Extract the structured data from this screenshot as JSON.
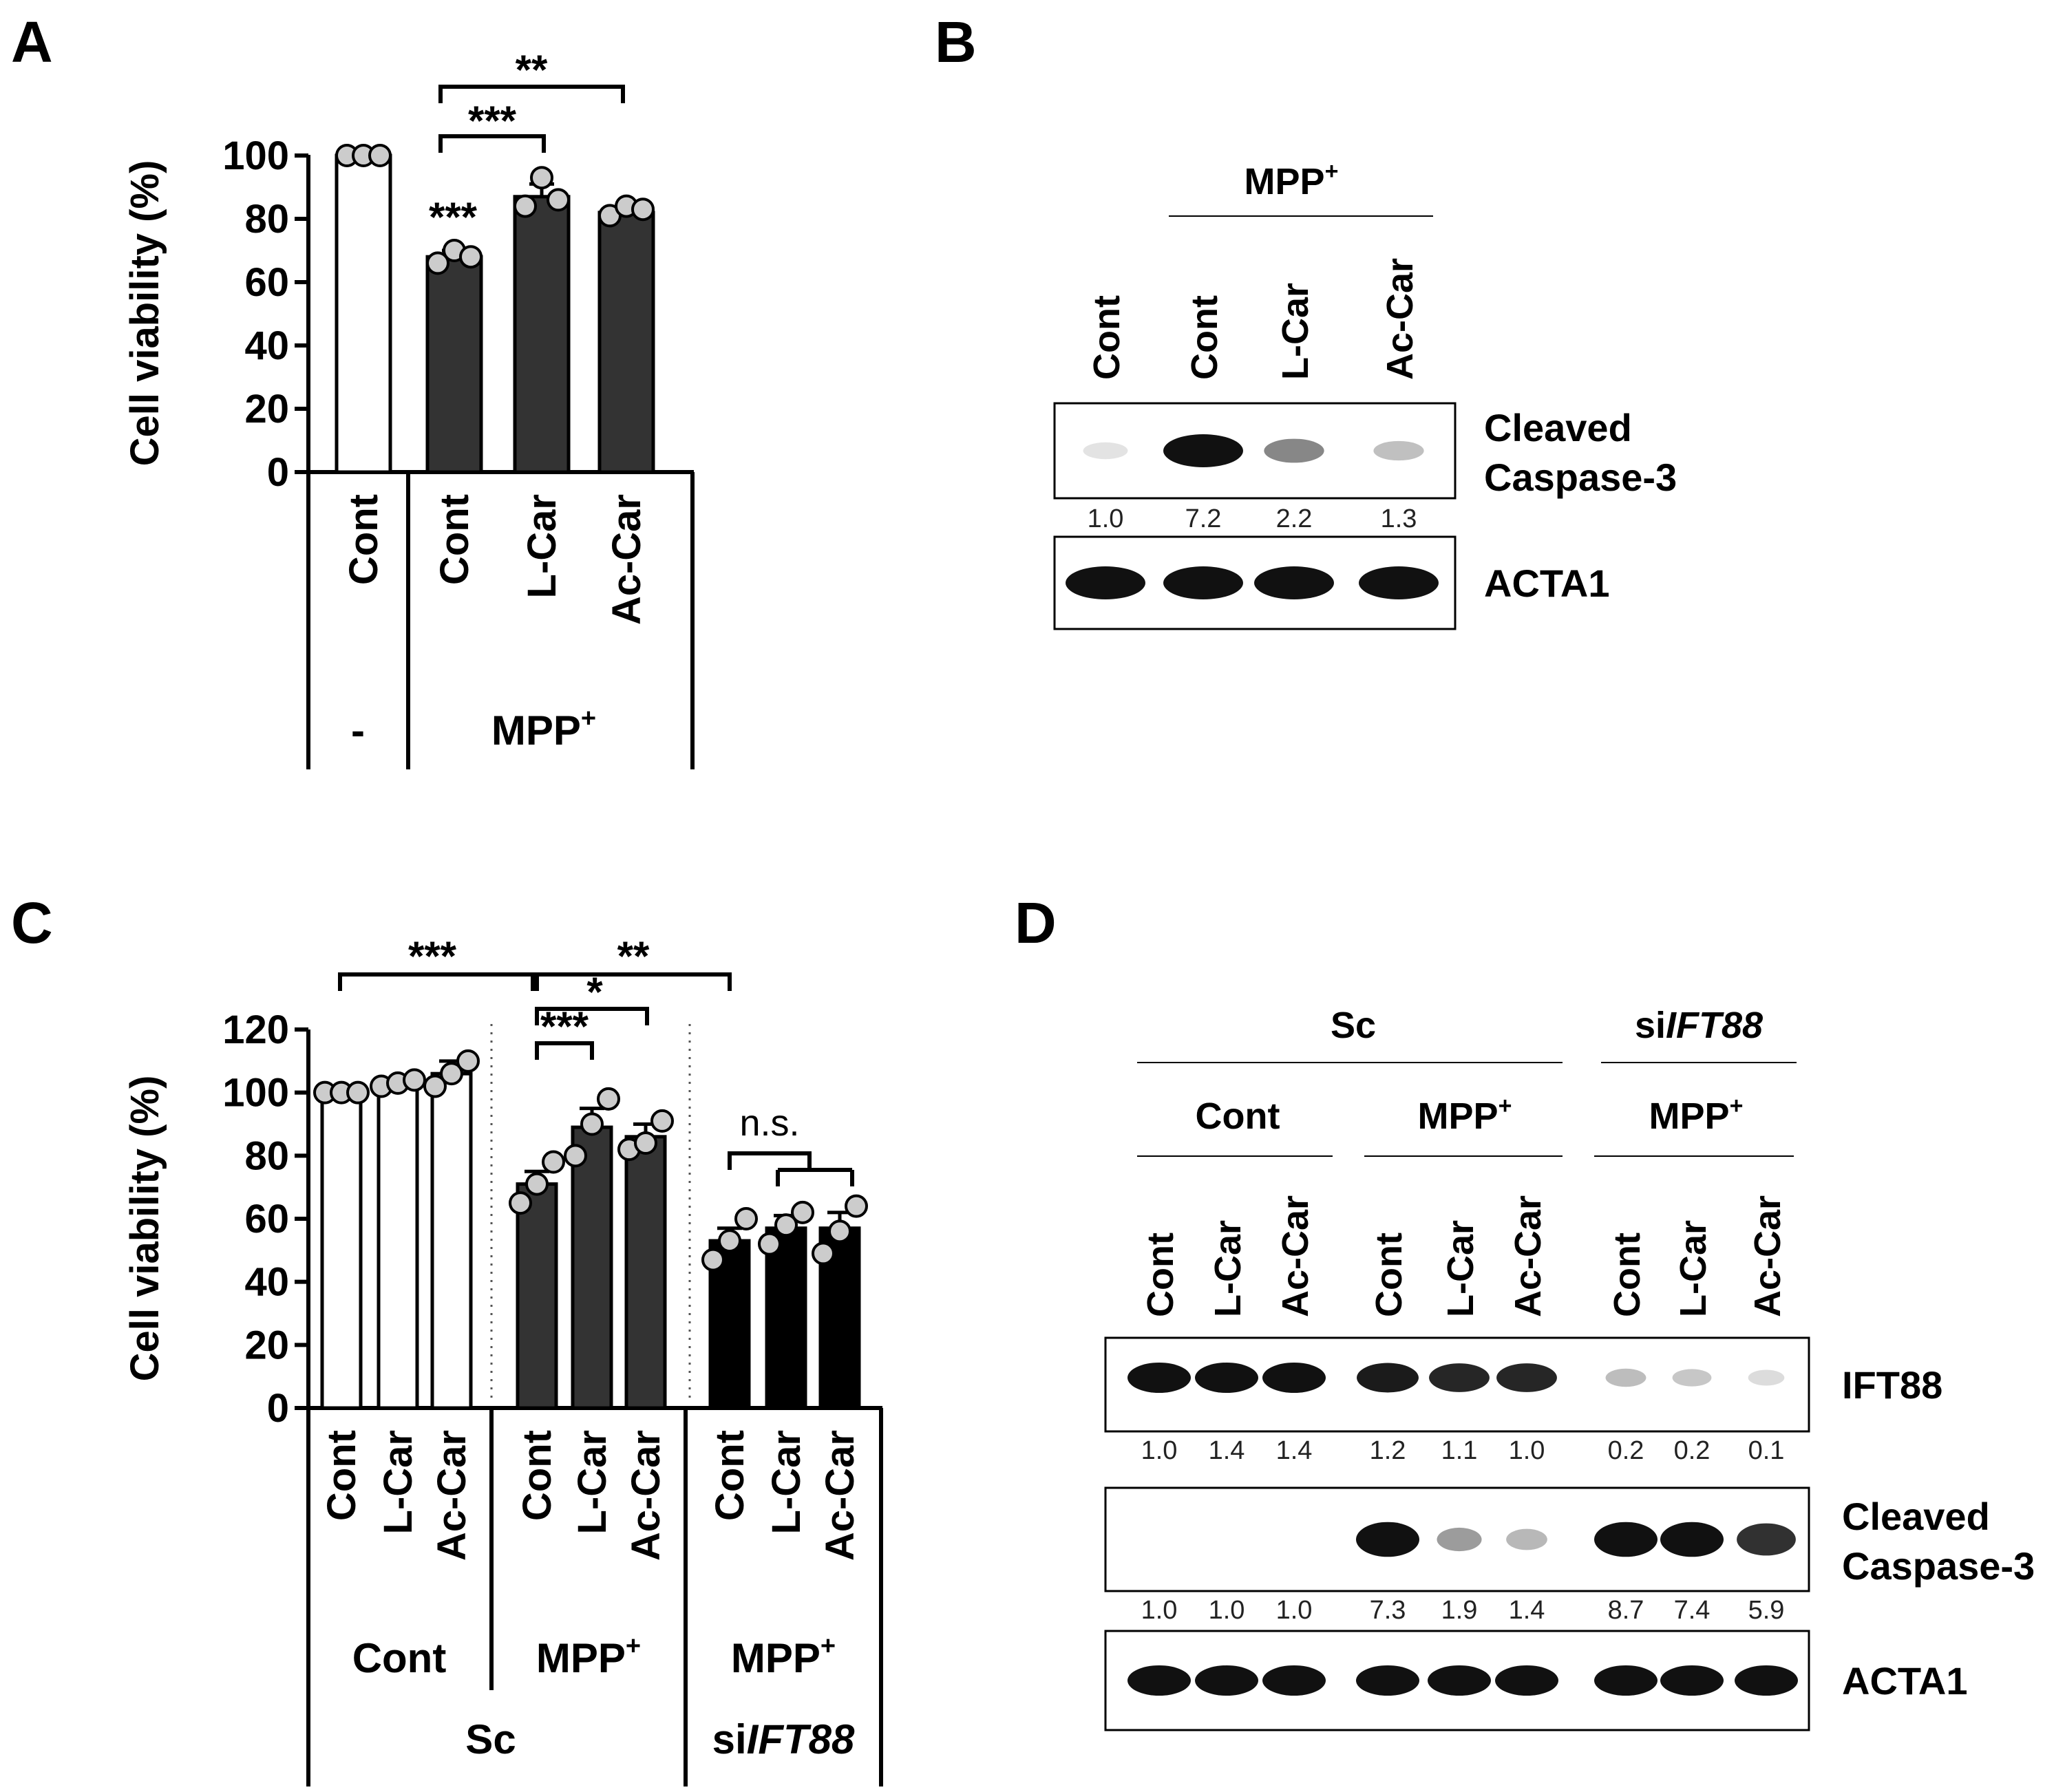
{
  "colors": {
    "white_bar": "#ffffff",
    "dark_bar": "#333333",
    "black_bar": "#000000",
    "dot_fill": "#cccccc"
  },
  "panel_a": {
    "label": "A",
    "ylabel": "Cell viability (%)",
    "yticks": [
      "0",
      "20",
      "40",
      "60",
      "80",
      "100"
    ],
    "groups": [
      {
        "name": "-"
      },
      {
        "name": "MPP",
        "sup": "+"
      }
    ],
    "sig_bars": [
      "**",
      "***"
    ],
    "sig_star": "***"
  },
  "panel_b": {
    "label": "B",
    "header": {
      "name": "MPP",
      "sup": "+"
    },
    "lanes": [
      "Cont",
      "Cont",
      "L-Car",
      "Ac-Car"
    ],
    "blots": [
      {
        "name": "Cleaved Caspase-3",
        "line1": "Cleaved",
        "line2": "Caspase-3",
        "values": [
          "1.0",
          "7.2",
          "2.2",
          "1.3"
        ],
        "intensity": [
          0.02,
          1.0,
          0.45,
          0.18
        ]
      },
      {
        "name": "ACTA1",
        "line1": "ACTA1",
        "values": [],
        "intensity": [
          1.0,
          1.0,
          1.0,
          1.0
        ]
      }
    ]
  },
  "panel_c": {
    "label": "C",
    "ylabel": "Cell viability (%)",
    "yticks": [
      "0",
      "20",
      "40",
      "60",
      "80",
      "100",
      "120"
    ],
    "group_labels": [
      {
        "name": "Cont"
      },
      {
        "name": "MPP",
        "sup": "+"
      },
      {
        "name": "MPP",
        "sup": "+"
      }
    ],
    "super_groups": [
      {
        "name": "Sc"
      },
      {
        "prefix": "si",
        "italic": "IFT88"
      }
    ],
    "sig_bars": [
      "***",
      "**",
      "*",
      "***"
    ],
    "ns_label": "n.s."
  },
  "panel_d": {
    "label": "D",
    "top_groups": [
      {
        "name": "Sc"
      },
      {
        "prefix": "si",
        "italic": "IFT88"
      }
    ],
    "mid_groups": [
      {
        "name": "Cont"
      },
      {
        "name": "MPP",
        "sup": "+"
      },
      {
        "name": "MPP",
        "sup": "+"
      }
    ],
    "lanes": [
      "Cont",
      "L-Car",
      "Ac-Car",
      "Cont",
      "L-Car",
      "Ac-Car",
      "Cont",
      "L-Car",
      "Ac-Car"
    ],
    "blots": [
      {
        "name": "IFT88",
        "line1": "IFT88",
        "values": [
          "1.0",
          "1.4",
          "1.4",
          "1.2",
          "1.1",
          "1.0",
          "0.2",
          "0.2",
          "0.1"
        ],
        "intensity": [
          1.0,
          1.0,
          1.0,
          0.95,
          0.9,
          0.9,
          0.2,
          0.15,
          0.05
        ]
      },
      {
        "name": "Cleaved Caspase-3",
        "line1": "Cleaved",
        "line2": "Caspase-3",
        "values": [
          "1.0",
          "1.0",
          "1.0",
          "7.3",
          "1.9",
          "1.4",
          "8.7",
          "7.4",
          "5.9"
        ],
        "intensity": [
          0.0,
          0.0,
          0.0,
          1.0,
          0.35,
          0.22,
          1.0,
          1.0,
          0.85
        ]
      },
      {
        "name": "ACTA1",
        "line1": "ACTA1",
        "values": [],
        "intensity": [
          1.0,
          1.0,
          1.0,
          1.0,
          1.0,
          1.0,
          1.0,
          1.0,
          1.0
        ]
      }
    ]
  },
  "chart_data": [
    {
      "type": "bar",
      "panel": "A",
      "ylabel": "Cell viability (%)",
      "ylim": [
        0,
        100
      ],
      "categories": [
        "Cont",
        "Cont",
        "L-Car",
        "Ac-Car"
      ],
      "groups": [
        "-",
        "MPP+",
        "MPP+",
        "MPP+"
      ],
      "values": [
        100,
        68,
        87,
        82
      ],
      "errors": [
        0,
        2,
        4,
        1
      ],
      "points": [
        [
          100,
          100,
          100
        ],
        [
          66,
          70,
          68
        ],
        [
          84,
          93,
          86
        ],
        [
          81,
          84,
          83
        ]
      ],
      "bar_colors": [
        "white",
        "dark",
        "dark",
        "dark"
      ]
    },
    {
      "type": "bar",
      "panel": "C",
      "ylabel": "Cell viability (%)",
      "ylim": [
        0,
        120
      ],
      "categories": [
        "Cont",
        "L-Car",
        "Ac-Car",
        "Cont",
        "L-Car",
        "Ac-Car",
        "Cont",
        "L-Car",
        "Ac-Car"
      ],
      "groups": [
        "Cont",
        "Cont",
        "Cont",
        "MPP+",
        "MPP+",
        "MPP+",
        "MPP+",
        "MPP+",
        "MPP+"
      ],
      "super_groups": [
        "Sc",
        "Sc",
        "Sc",
        "Sc",
        "Sc",
        "Sc",
        "siIFT88",
        "siIFT88",
        "siIFT88"
      ],
      "values": [
        100,
        103,
        106,
        71,
        89,
        86,
        53,
        57,
        57
      ],
      "errors": [
        0,
        1,
        4,
        4,
        6,
        4,
        4,
        4,
        5
      ],
      "points": [
        [
          100,
          100,
          100
        ],
        [
          102,
          103,
          104
        ],
        [
          102,
          106,
          110
        ],
        [
          65,
          71,
          78
        ],
        [
          80,
          90,
          98
        ],
        [
          82,
          84,
          91
        ],
        [
          47,
          53,
          60
        ],
        [
          52,
          58,
          62
        ],
        [
          49,
          56,
          64
        ]
      ],
      "bar_colors": [
        "white",
        "white",
        "white",
        "dark",
        "dark",
        "dark",
        "black",
        "black",
        "black"
      ]
    }
  ]
}
